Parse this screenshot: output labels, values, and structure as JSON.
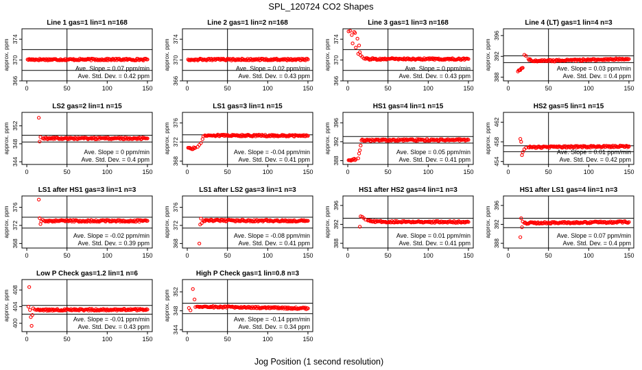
{
  "title": "SPL_120724  CO2 Shapes",
  "xlabel": "Jog Position (1 second resolution)",
  "ylabel": "approx. ppm",
  "colors": {
    "points": "#ff0000",
    "axes": "#000000",
    "background": "#ffffff"
  },
  "chart_data": [
    {
      "type": "scatter",
      "title": "Line 1 gas=1 lin=1 n=168",
      "xlim": [
        0,
        150
      ],
      "ylim": [
        366,
        376
      ],
      "yticks": [
        366,
        370,
        374
      ],
      "xticks": [
        0,
        50,
        100,
        150
      ],
      "hlines": [
        372,
        368
      ],
      "vline": 50,
      "slope_text": "Ave. Slope = 0.07  ppm/min",
      "std_text": "Ave. Std. Dev. = 0.42  ppm",
      "series": [
        {
          "x": [
            1,
            150
          ],
          "y": [
            370.1,
            370.1
          ]
        }
      ]
    },
    {
      "type": "scatter",
      "title": "Line 2 gas=1 lin=2 n=168",
      "xlim": [
        0,
        150
      ],
      "ylim": [
        366,
        376
      ],
      "yticks": [
        366,
        370,
        374
      ],
      "xticks": [
        0,
        50,
        100,
        150
      ],
      "hlines": [
        372,
        368
      ],
      "vline": 50,
      "slope_text": "Ave. Slope = 0.02  ppm/min",
      "std_text": "Ave. Std. Dev. = 0.43  ppm",
      "series": [
        {
          "x": [
            1,
            150
          ],
          "y": [
            370.1,
            370.1
          ]
        }
      ]
    },
    {
      "type": "scatter",
      "title": "Line 3 gas=1 lin=3 n=168",
      "xlim": [
        0,
        150
      ],
      "ylim": [
        366,
        376
      ],
      "yticks": [
        366,
        370,
        374
      ],
      "xticks": [
        0,
        50,
        100,
        150
      ],
      "hlines": [
        372,
        368
      ],
      "vline": 50,
      "slope_text": "Ave. Slope = 0  ppm/min",
      "std_text": "Ave. Std. Dev. = 0.43  ppm",
      "series": [
        {
          "x": [
            1,
            3,
            5,
            6,
            8,
            9,
            10,
            12,
            13,
            14,
            15,
            16,
            18,
            20,
            22,
            150
          ],
          "y": [
            375.5,
            375.6,
            374.8,
            373.2,
            375.4,
            375.2,
            372.4,
            374.1,
            371.2,
            372.8,
            371.5,
            370.9,
            370.6,
            370.3,
            370.2,
            370.2
          ]
        }
      ]
    },
    {
      "type": "scatter",
      "title": "Line 4 (LT) gas=1 lin=4 n=3",
      "xlim": [
        0,
        150
      ],
      "ylim": [
        387.3,
        397.3
      ],
      "yticks": [
        388,
        392,
        396
      ],
      "xticks": [
        0,
        50,
        100,
        150
      ],
      "hlines": [
        392.1,
        390.8
      ],
      "vline": 50,
      "slope_text": "Ave. Slope = 0.03  ppm/min",
      "std_text": "Ave. Std. Dev. = 0.4  ppm",
      "series": [
        {
          "x": [
            12,
            18,
            20,
            22,
            25,
            30,
            150
          ],
          "y": [
            389.1,
            389.8,
            392.3,
            392.1,
            391.5,
            391.1,
            391.5
          ]
        }
      ]
    },
    {
      "type": "scatter",
      "title": "LS2 gas=2 lin=1 n=15",
      "xlim": [
        0,
        150
      ],
      "ylim": [
        343.4,
        355
      ],
      "yticks": [
        344,
        348,
        352
      ],
      "xticks": [
        0,
        50,
        100,
        150
      ],
      "hlines": [
        349.9,
        348.4
      ],
      "vline": 50,
      "slope_text": "Ave. Slope = 0  ppm/min",
      "std_text": "Ave. Std. Dev. = 0.4  ppm",
      "series": [
        {
          "x": [
            15,
            16,
            17,
            20,
            150
          ],
          "y": [
            353.8,
            348.5,
            349.5,
            349.2,
            349.2
          ]
        }
      ]
    },
    {
      "type": "scatter",
      "title": "LS1 gas=3 lin=1 n=15",
      "xlim": [
        0,
        150
      ],
      "ylim": [
        367.3,
        378.2
      ],
      "yticks": [
        368,
        372,
        376
      ],
      "xticks": [
        0,
        50,
        100,
        150
      ],
      "hlines": [
        373.5,
        372
      ],
      "vline": 50,
      "slope_text": "Ave. Slope = -0.04  ppm/min",
      "std_text": "Ave. Std. Dev. = 0.41  ppm",
      "series": [
        {
          "x": [
            1,
            5,
            10,
            13,
            15,
            17,
            19,
            20,
            22,
            150
          ],
          "y": [
            370.8,
            370.6,
            370.8,
            371,
            371.4,
            371.8,
            372.6,
            373.2,
            373.4,
            373.3
          ]
        }
      ]
    },
    {
      "type": "scatter",
      "title": "HS1 gas=4 lin=1 n=15",
      "xlim": [
        0,
        150
      ],
      "ylim": [
        387.2,
        398.2
      ],
      "yticks": [
        388,
        392,
        396
      ],
      "xticks": [
        0,
        50,
        100,
        150
      ],
      "hlines": [
        393.1,
        391.7
      ],
      "vline": 50,
      "slope_text": "Ave. Slope = 0.05  ppm/min",
      "std_text": "Ave. Std. Dev. = 0.41  ppm",
      "series": [
        {
          "x": [
            1,
            5,
            10,
            13,
            14,
            15,
            16,
            17,
            150
          ],
          "y": [
            388.1,
            388.2,
            388.3,
            388.5,
            389.5,
            390.2,
            391.2,
            392.3,
            392.4
          ]
        }
      ]
    },
    {
      "type": "scatter",
      "title": "HS2 gas=5 lin=1 n=15",
      "xlim": [
        0,
        150
      ],
      "ylim": [
        453.4,
        464
      ],
      "yticks": [
        454,
        458,
        462
      ],
      "xticks": [
        0,
        50,
        100,
        150
      ],
      "hlines": [
        457.2,
        456
      ],
      "vline": 50,
      "slope_text": "Ave. Slope = 0.01  ppm/min",
      "std_text": "Ave. Std. Dev. = 0.42  ppm",
      "series": [
        {
          "x": [
            15,
            16,
            17,
            18,
            20,
            22,
            25,
            150
          ],
          "y": [
            458.6,
            458,
            455.3,
            455.9,
            456.5,
            456.8,
            456.9,
            457.1
          ]
        }
      ]
    },
    {
      "type": "scatter",
      "title": "LS1 after HS1 gas=3 lin=1 n=3",
      "xlim": [
        0,
        150
      ],
      "ylim": [
        367,
        378.5
      ],
      "yticks": [
        368,
        372,
        376
      ],
      "xticks": [
        0,
        50,
        100,
        150
      ],
      "hlines": [
        373.8,
        371.4
      ],
      "vline": 50,
      "slope_text": "Ave. Slope = -0.02  ppm/min",
      "std_text": "Ave. Std. Dev. = 0.39  ppm",
      "series": [
        {
          "x": [
            15,
            16,
            17,
            18,
            20,
            22,
            150
          ],
          "y": [
            377.7,
            373.6,
            372.3,
            372.9,
            373.2,
            373,
            373
          ]
        }
      ]
    },
    {
      "type": "scatter",
      "title": "LS1 after LS2 gas=3 lin=1 n=3",
      "xlim": [
        0,
        150
      ],
      "ylim": [
        367,
        378.5
      ],
      "yticks": [
        368,
        372,
        376
      ],
      "xticks": [
        0,
        50,
        100,
        150
      ],
      "hlines": [
        373.8,
        371.4
      ],
      "vline": 50,
      "slope_text": "Ave. Slope = -0.08  ppm/min",
      "std_text": "Ave. Std. Dev. = 0.41  ppm",
      "series": [
        {
          "x": [
            15,
            16,
            17,
            18,
            20,
            150
          ],
          "y": [
            368,
            372.2,
            373.5,
            372.5,
            373.1,
            373
          ]
        }
      ]
    },
    {
      "type": "scatter",
      "title": "HS1 after HS2 gas=4 lin=1 n=3",
      "xlim": [
        0,
        150
      ],
      "ylim": [
        387,
        398
      ],
      "yticks": [
        388,
        392,
        396
      ],
      "xticks": [
        0,
        50,
        100,
        150
      ],
      "hlines": [
        393.3,
        391.3
      ],
      "vline": 50,
      "slope_text": "Ave. Slope = 0.01  ppm/min",
      "std_text": "Ave. Std. Dev. = 0.41  ppm",
      "series": [
        {
          "x": [
            15,
            16,
            18,
            20,
            22,
            25,
            30,
            150
          ],
          "y": [
            391.5,
            393.7,
            393.6,
            393.3,
            393,
            392.8,
            392.6,
            392.5
          ]
        }
      ]
    },
    {
      "type": "scatter",
      "title": "HS1 after LS1 gas=4 lin=1 n=3",
      "xlim": [
        0,
        150
      ],
      "ylim": [
        387,
        398
      ],
      "yticks": [
        388,
        392,
        396
      ],
      "xticks": [
        0,
        50,
        100,
        150
      ],
      "hlines": [
        393.3,
        391.3
      ],
      "vline": 50,
      "slope_text": "Ave. Slope = 0.07  ppm/min",
      "std_text": "Ave. Std. Dev. = 0.4  ppm",
      "series": [
        {
          "x": [
            15,
            16,
            17,
            18,
            20,
            150
          ],
          "y": [
            389.3,
            393.3,
            391.4,
            392.6,
            392.3,
            392.5
          ]
        }
      ]
    },
    {
      "type": "scatter",
      "title": "Low P Check gas=1.2 lin=1 n=6",
      "xlim": [
        0,
        150
      ],
      "ylim": [
        398,
        410.5
      ],
      "yticks": [
        400,
        404,
        408
      ],
      "xticks": [
        0,
        50,
        100,
        150
      ],
      "hlines": [
        404.3,
        402.2
      ],
      "vline": 50,
      "slope_text": "Ave. Slope = -0.01  ppm/min",
      "std_text": "Ave. Std. Dev. = 0.43  ppm",
      "series": [
        {
          "x": [
            2,
            3,
            4,
            5,
            6,
            7,
            8,
            10,
            12,
            150
          ],
          "y": [
            404,
            408.7,
            403.2,
            401.5,
            399.4,
            402,
            403.6,
            403.3,
            403.2,
            403.3
          ]
        }
      ]
    },
    {
      "type": "scatter",
      "title": "High P Check gas=1 lin=0.8 n=3",
      "xlim": [
        0,
        150
      ],
      "ylim": [
        343.6,
        354.6
      ],
      "yticks": [
        344,
        348,
        352
      ],
      "xticks": [
        0,
        50,
        100,
        150
      ],
      "hlines": [
        349.6,
        347.4
      ],
      "vline": 50,
      "slope_text": "Ave. Slope = -0.14  ppm/min",
      "std_text": "Ave. Std. Dev. = 0.34  ppm",
      "series": [
        {
          "x": [
            2,
            4,
            7,
            9,
            10,
            12,
            150
          ],
          "y": [
            348.6,
            348.1,
            352.6,
            350.4,
            348.8,
            348.9,
            348.5
          ]
        }
      ]
    }
  ]
}
